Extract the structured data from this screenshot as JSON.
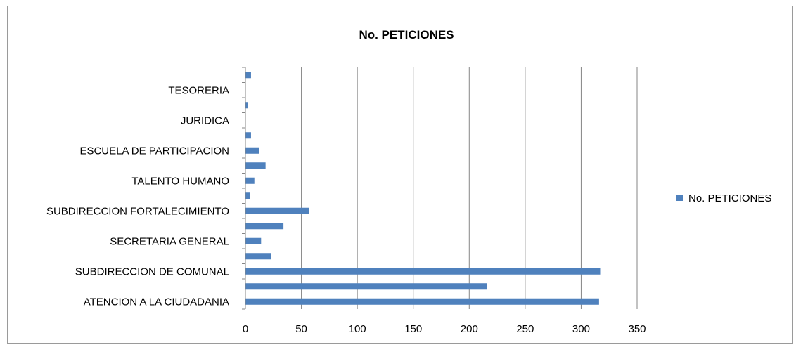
{
  "chart_data": {
    "type": "bar",
    "orientation": "horizontal",
    "title": "No. PETICIONES",
    "xlabel": "",
    "ylabel": "",
    "xlim": [
      0,
      350
    ],
    "xticks": [
      0,
      50,
      100,
      150,
      200,
      250,
      300,
      350
    ],
    "grid": true,
    "legend_position": "right",
    "bar_color": "#4F81BD",
    "category_labels_shown": [
      "TESORERIA",
      "JURIDICA",
      "ESCUELA DE PARTICIPACION",
      "TALENTO HUMANO",
      "SUBDIRECCION FORTALECIMIENTO",
      "SECRETARIA GENERAL",
      "SUBDIRECCION DE  COMUNAL",
      "ATENCION A LA CIUDADANIA"
    ],
    "categories": [
      "ATENCION A LA CIUDADANIA",
      "",
      "SUBDIRECCION DE  COMUNAL",
      "",
      "SECRETARIA GENERAL",
      "",
      "SUBDIRECCION FORTALECIMIENTO",
      "",
      "TALENTO HUMANO",
      "",
      "ESCUELA DE PARTICIPACION",
      "",
      "JURIDICA",
      "",
      "TESORERIA",
      ""
    ],
    "series": [
      {
        "name": "No. PETICIONES",
        "values": [
          316,
          216,
          317,
          23,
          14,
          34,
          57,
          4,
          8,
          18,
          12,
          5,
          0,
          2,
          0,
          5
        ]
      }
    ]
  }
}
